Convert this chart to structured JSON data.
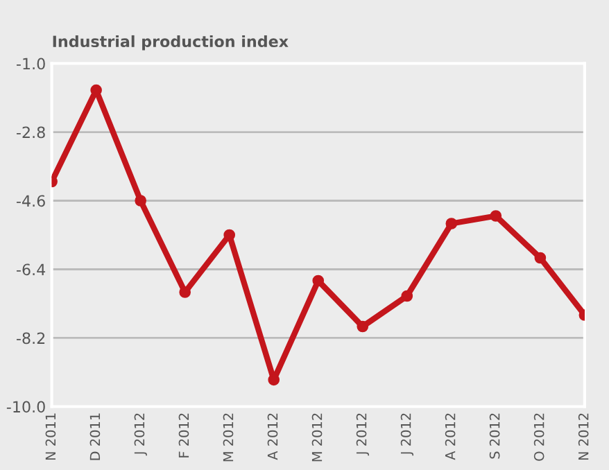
{
  "chart_data": {
    "type": "line",
    "title": "Industrial production index",
    "categories": [
      "N 2011",
      "D 2011",
      "J 2012",
      "F 2012",
      "M 2012",
      "A 2012",
      "M 2012",
      "J 2012",
      "J 2012",
      "A 2012",
      "S 2012",
      "O 2012",
      "N 2012"
    ],
    "series": [
      {
        "color": "#c4161c",
        "values": [
          -4.1,
          -1.7,
          -4.6,
          -7.0,
          -5.5,
          -9.3,
          -6.7,
          -7.9,
          -7.1,
          -5.2,
          -5.0,
          -6.1,
          -7.6
        ]
      }
    ],
    "ylim": [
      -10.0,
      -1.0
    ],
    "yticks": [
      {
        "value": -10.0,
        "label": "-10.0"
      },
      {
        "value": -8.2,
        "label": "-8.2"
      },
      {
        "value": -6.4,
        "label": "-6.4"
      },
      {
        "value": -4.6,
        "label": "-4.6"
      },
      {
        "value": -2.8,
        "label": "-2.8"
      },
      {
        "value": -1.0,
        "label": "-1.0"
      }
    ],
    "grid": "y",
    "marker": "circle",
    "line_style": "solid",
    "legend": false
  }
}
